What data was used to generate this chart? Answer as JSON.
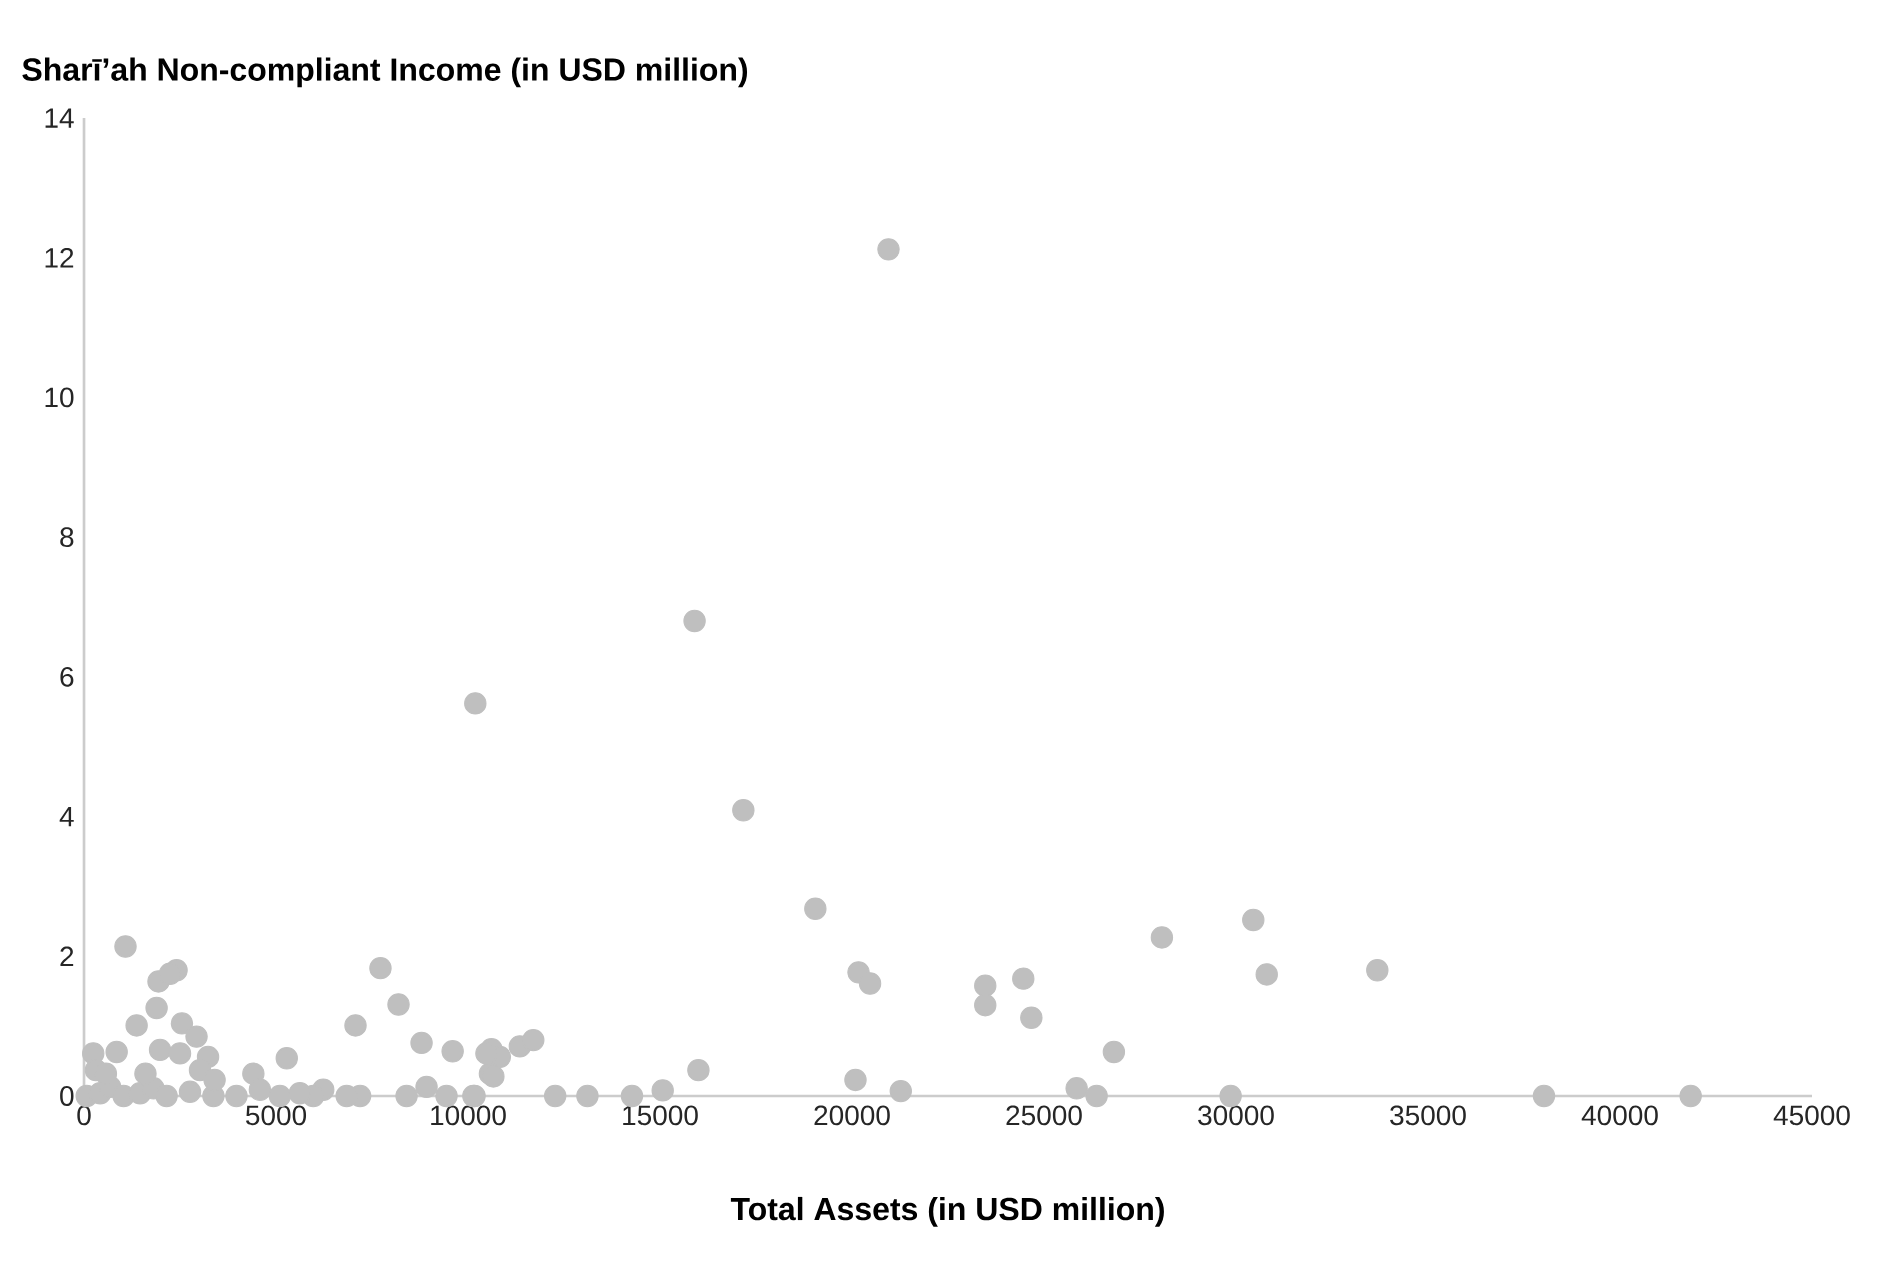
{
  "chart_data": {
    "type": "scatter",
    "ylabel": "Sharī’ah Non-compliant Income (in USD million)",
    "xlabel": "Total Assets (in USD million)",
    "xlim": [
      0,
      45000
    ],
    "ylim": [
      0,
      14
    ],
    "xticks": [
      0,
      5000,
      10000,
      15000,
      20000,
      25000,
      30000,
      35000,
      40000,
      45000
    ],
    "yticks": [
      0,
      2,
      4,
      6,
      8,
      10,
      12,
      14
    ],
    "grid": false,
    "marker": "circle",
    "series": [
      {
        "color": "#bfbfbf",
        "x": [
          20950,
          15900,
          17170,
          19045,
          20170,
          20470,
          23470,
          23470,
          24460,
          24670,
          28070,
          30450,
          30800,
          33680,
          26820,
          16000,
          15070,
          14270,
          20090,
          21270,
          25850,
          26370,
          29860,
          38020,
          41840,
          10190,
          7720,
          8190,
          7070,
          8790,
          9600,
          10610,
          11350,
          11700,
          10830,
          10570,
          12270,
          13110,
          8400,
          8920,
          9440,
          10170,
          6230,
          7190,
          5970,
          1080,
          1940,
          2410,
          2240,
          1890,
          1370,
          2550,
          2930,
          1980,
          2500,
          3230,
          850,
          240,
          5280,
          3020,
          4410,
          70,
          420,
          680,
          1030,
          1460,
          1810,
          2150,
          2760,
          3370,
          3970,
          4580,
          5100,
          5620,
          6840,
          10140,
          10660,
          10480,
          310,
          570,
          1600,
          3400
        ],
        "values": [
          12.12,
          6.8,
          4.09,
          2.68,
          1.77,
          1.61,
          1.58,
          1.3,
          1.68,
          1.12,
          2.27,
          2.52,
          1.74,
          1.8,
          0.63,
          0.37,
          0.08,
          0,
          0.23,
          0.07,
          0.11,
          0,
          0,
          0,
          0,
          5.62,
          1.83,
          1.31,
          1.01,
          0.76,
          0.64,
          0.67,
          0.71,
          0.8,
          0.56,
          0.32,
          0,
          0,
          0,
          0.13,
          0,
          0,
          0.09,
          0,
          0,
          2.14,
          1.64,
          1.8,
          1.75,
          1.26,
          1.01,
          1.04,
          0.85,
          0.66,
          0.61,
          0.56,
          0.63,
          0.61,
          0.54,
          0.37,
          0.32,
          0,
          0.04,
          0.13,
          0,
          0.04,
          0.11,
          0,
          0.06,
          0,
          0,
          0.09,
          0,
          0.04,
          0,
          0,
          0.28,
          0.61,
          0.37,
          0.32,
          0.32,
          0.23
        ]
      }
    ]
  }
}
